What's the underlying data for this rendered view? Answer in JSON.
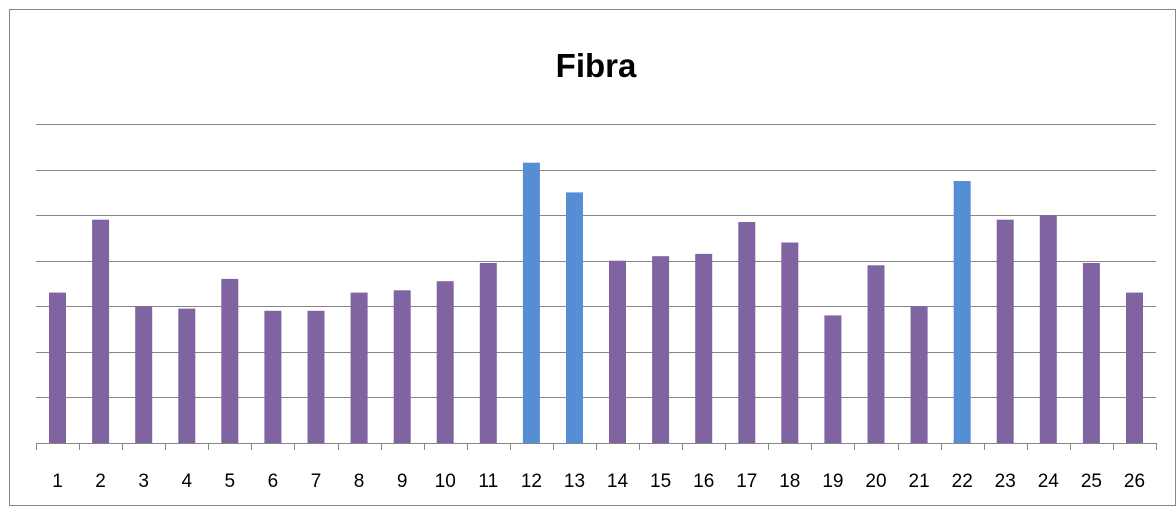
{
  "chart_data": {
    "type": "bar",
    "title": "Fibra",
    "xlabel": "",
    "ylabel": "",
    "categories": [
      "1",
      "2",
      "3",
      "4",
      "5",
      "6",
      "7",
      "8",
      "9",
      "10",
      "11",
      "12",
      "13",
      "14",
      "15",
      "16",
      "17",
      "18",
      "19",
      "20",
      "21",
      "22",
      "23",
      "24",
      "25",
      "26"
    ],
    "values": [
      3.3,
      4.9,
      3.0,
      2.95,
      3.6,
      2.9,
      2.9,
      3.3,
      3.35,
      3.55,
      3.95,
      6.15,
      5.5,
      4.0,
      4.1,
      4.15,
      4.85,
      4.4,
      2.8,
      3.9,
      3.0,
      5.75,
      4.9,
      5.0,
      3.95,
      3.3
    ],
    "highlighted": [
      12,
      13,
      22
    ],
    "ylim": [
      0,
      7
    ],
    "gridlines": true,
    "y_tick_labels_visible": false,
    "colors": {
      "bar": "#8064A2",
      "highlight": "#558ED5",
      "grid": "#868686",
      "axis": "#868686",
      "frame": "#868686"
    }
  }
}
